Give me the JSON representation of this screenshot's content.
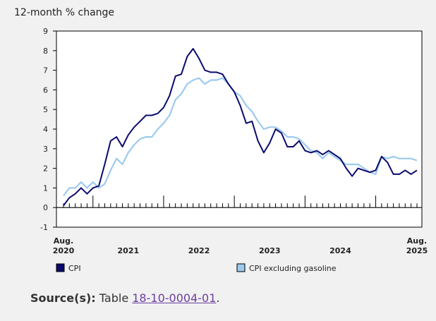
{
  "chart_data": {
    "type": "line",
    "ylabel": "12-month % change",
    "ylim": [
      -1,
      9
    ],
    "yticks": [
      -1,
      0,
      1,
      2,
      3,
      4,
      5,
      6,
      7,
      8,
      9
    ],
    "x_start": "2020-08",
    "x_end": "2025-08",
    "x_tick_labels": [
      {
        "month": "2020-08",
        "line1": "Aug.",
        "line2": "2020"
      },
      {
        "month": "2021-07",
        "line1": "",
        "line2": "2021"
      },
      {
        "month": "2022-07",
        "line1": "",
        "line2": "2022"
      },
      {
        "month": "2023-07",
        "line1": "",
        "line2": "2023"
      },
      {
        "month": "2024-07",
        "line1": "",
        "line2": "2024"
      },
      {
        "month": "2025-08",
        "line1": "Aug.",
        "line2": "2025"
      }
    ],
    "series": [
      {
        "name": "CPI",
        "color": "#0a0a6e",
        "values": [
          0.1,
          0.5,
          0.7,
          1.0,
          0.7,
          1.0,
          1.1,
          2.2,
          3.4,
          3.6,
          3.1,
          3.7,
          4.1,
          4.4,
          4.7,
          4.7,
          4.8,
          5.1,
          5.7,
          6.7,
          6.8,
          7.7,
          8.1,
          7.6,
          7.0,
          6.9,
          6.9,
          6.8,
          6.3,
          5.9,
          5.2,
          4.3,
          4.4,
          3.4,
          2.8,
          3.3,
          4.0,
          3.8,
          3.1,
          3.1,
          3.4,
          2.9,
          2.8,
          2.9,
          2.7,
          2.9,
          2.7,
          2.5,
          2.0,
          1.6,
          2.0,
          1.9,
          1.8,
          1.9,
          2.6,
          2.3,
          1.7,
          1.7,
          1.9,
          1.7,
          1.9
        ]
      },
      {
        "name": "CPI excluding gasoline",
        "color": "#9ccbee",
        "values": [
          0.6,
          1.0,
          1.0,
          1.3,
          1.0,
          1.3,
          1.0,
          1.2,
          1.9,
          2.5,
          2.2,
          2.8,
          3.2,
          3.5,
          3.6,
          3.6,
          4.0,
          4.3,
          4.7,
          5.5,
          5.8,
          6.3,
          6.5,
          6.6,
          6.3,
          6.5,
          6.5,
          6.6,
          6.3,
          5.9,
          5.7,
          5.2,
          4.9,
          4.4,
          4.0,
          4.1,
          4.1,
          3.9,
          3.6,
          3.6,
          3.5,
          3.2,
          2.9,
          2.8,
          2.5,
          2.8,
          2.6,
          2.4,
          2.2,
          2.2,
          2.2,
          2.0,
          1.8,
          1.7,
          2.6,
          2.5,
          2.6,
          2.5,
          2.5,
          2.5,
          2.4
        ]
      }
    ],
    "legend_position": "bottom",
    "grid": false
  },
  "source": {
    "label": "Source(s):",
    "text": "Table",
    "link_text": "18-10-0004-01",
    "suffix": "."
  }
}
